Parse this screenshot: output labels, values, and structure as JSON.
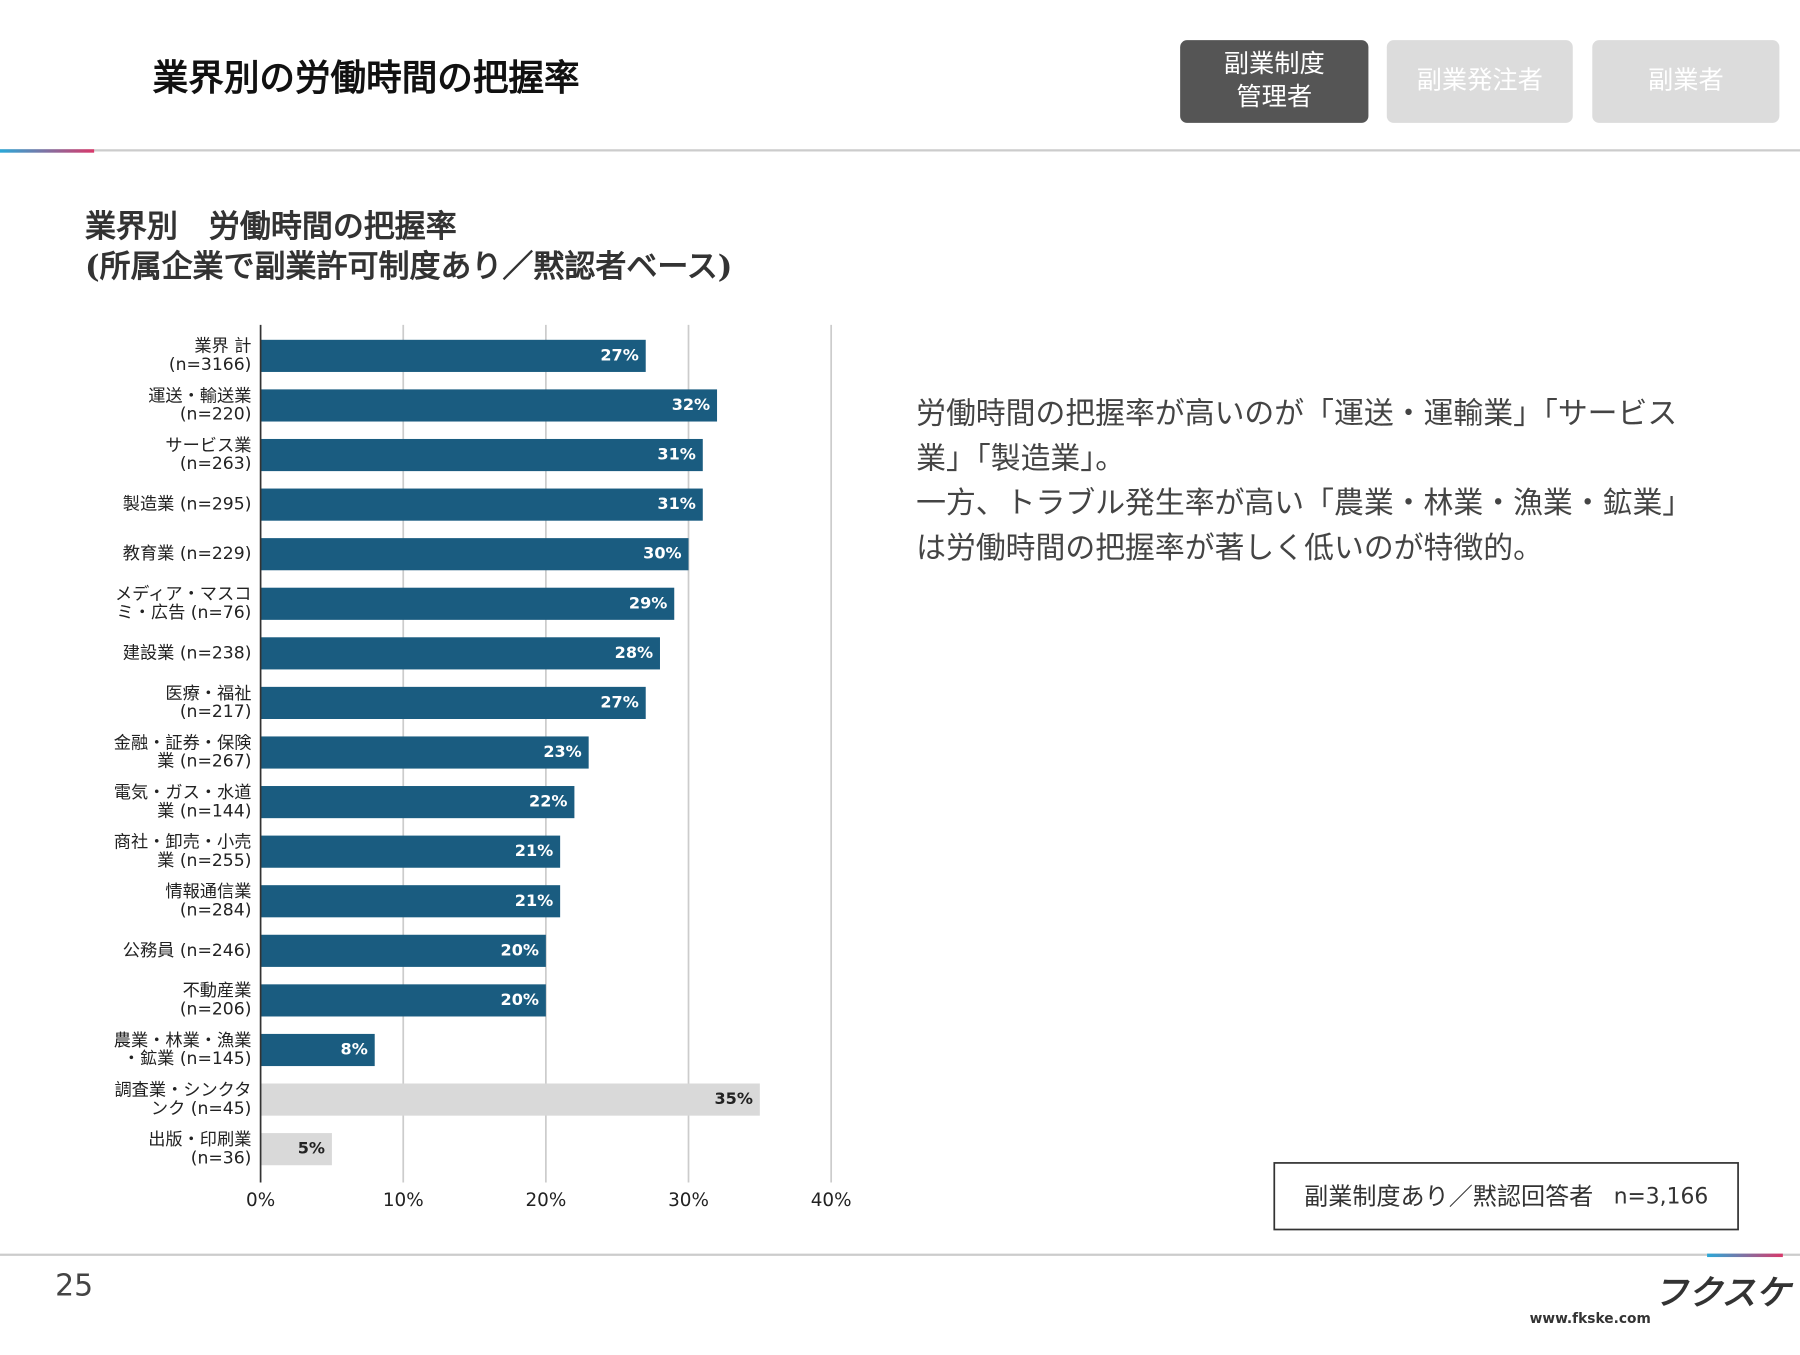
{
  "header": {
    "title": "業界別の労働時間の把握率",
    "tabs": [
      {
        "lines": [
          "副業制度",
          "管理者"
        ],
        "active": true
      },
      {
        "lines": [
          "副業発注者"
        ],
        "active": false
      },
      {
        "lines": [
          "副業者"
        ],
        "active": false
      }
    ]
  },
  "chart_data": {
    "type": "bar",
    "orientation": "horizontal",
    "title": [
      "業界別　労働時間の把握率",
      "(所属企業で副業許可制度あり／黙認者ベース)"
    ],
    "categories": [
      [
        "業界 計",
        "(n=3166)"
      ],
      [
        "運送・輸送業",
        "(n=220)"
      ],
      [
        "サービス業",
        "(n=263)"
      ],
      [
        "製造業 (n=295)"
      ],
      [
        "教育業 (n=229)"
      ],
      [
        "メディア・マスコ",
        "ミ・広告 (n=76)"
      ],
      [
        "建設業 (n=238)"
      ],
      [
        "医療・福祉",
        "(n=217)"
      ],
      [
        "金融・証券・保険",
        "業 (n=267)"
      ],
      [
        "電気・ガス・水道",
        "業 (n=144)"
      ],
      [
        "商社・卸売・小売",
        "業 (n=255)"
      ],
      [
        "情報通信業",
        "(n=284)"
      ],
      [
        "公務員 (n=246)"
      ],
      [
        "不動産業",
        "(n=206)"
      ],
      [
        "農業・林業・漁業",
        "・鉱業 (n=145)"
      ],
      [
        "調査業・シンクタ",
        "ンク (n=45)"
      ],
      [
        "出版・印刷業",
        "(n=36)"
      ]
    ],
    "values": [
      27,
      32,
      31,
      31,
      30,
      29,
      28,
      27,
      23,
      22,
      21,
      21,
      20,
      20,
      8,
      35,
      5
    ],
    "value_labels": [
      "27%",
      "32%",
      "31%",
      "31%",
      "30%",
      "29%",
      "28%",
      "27%",
      "23%",
      "22%",
      "21%",
      "21%",
      "20%",
      "20%",
      "8%",
      "35%",
      "5%"
    ],
    "colors": [
      "#1a5c80",
      "#1a5c80",
      "#1a5c80",
      "#1a5c80",
      "#1a5c80",
      "#1a5c80",
      "#1a5c80",
      "#1a5c80",
      "#1a5c80",
      "#1a5c80",
      "#1a5c80",
      "#1a5c80",
      "#1a5c80",
      "#1a5c80",
      "#1a5c80",
      "#d9d9d9",
      "#d9d9d9"
    ],
    "xlim": [
      0,
      40
    ],
    "xticks": [
      {
        "value": 0,
        "label": "0%"
      },
      {
        "value": 10,
        "label": "10%"
      },
      {
        "value": 20,
        "label": "20%"
      },
      {
        "value": 30,
        "label": "30%"
      },
      {
        "value": 40,
        "label": "40%"
      }
    ],
    "grid": true
  },
  "description": [
    "労働時間の把握率が高いのが「運送・運輸業」「サービス業」「製造業」。",
    "一方、トラブル発生率が高い「農業・林業・漁業・鉱業」は労働時間の把握率が著しく低いのが特徴的。"
  ],
  "note": {
    "label": "副業制度あり／黙認回答者",
    "n": "n=3,166"
  },
  "footer": {
    "page": "25",
    "logo": "フクスケ",
    "url": "www.fkske.com"
  }
}
